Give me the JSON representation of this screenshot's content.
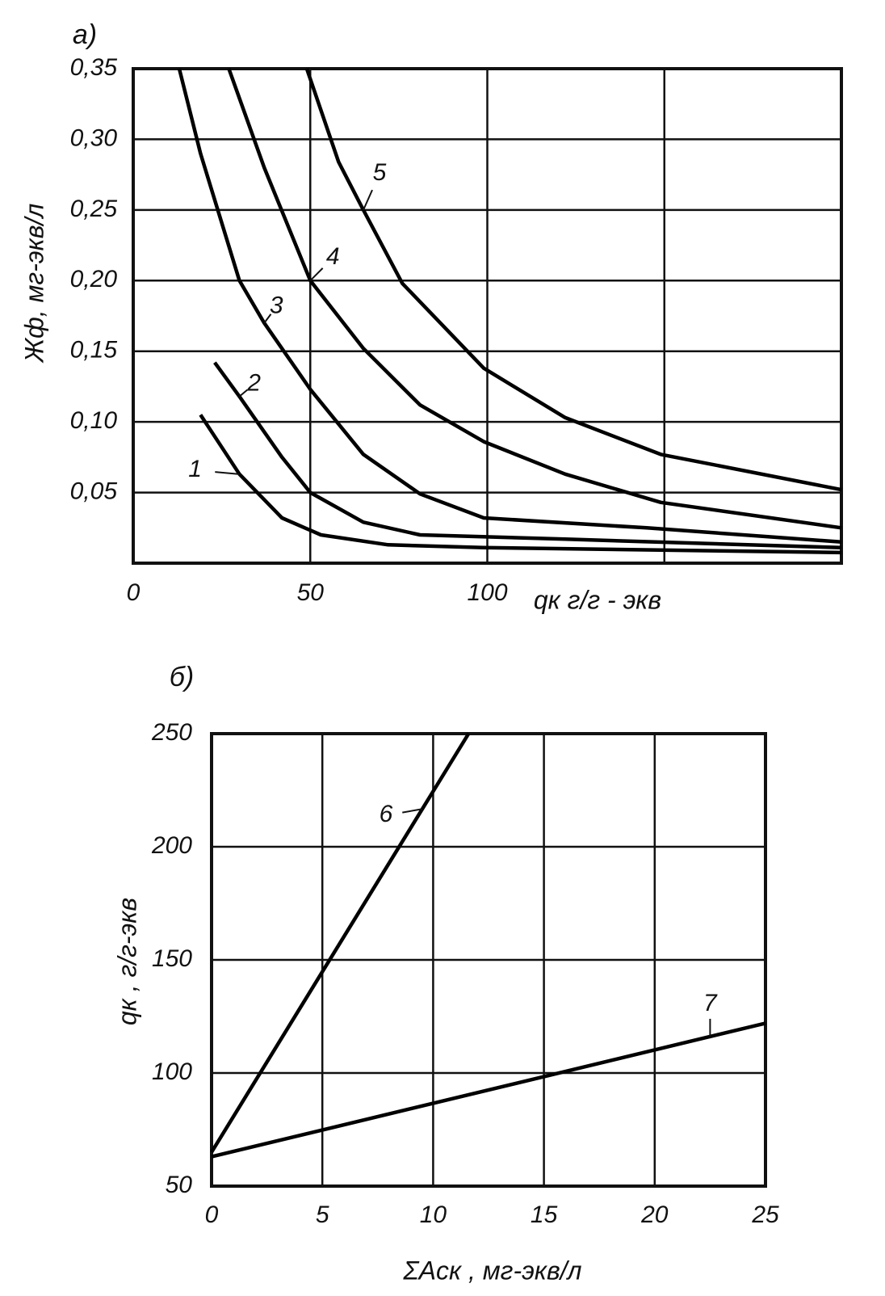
{
  "chart_data": [
    {
      "type": "line",
      "title": "а)",
      "xlabel": "qк г/г - экв",
      "ylabel": "Жф, мг-экв/л",
      "xlim": [
        0,
        200
      ],
      "ylim": [
        0,
        0.35
      ],
      "grid": true,
      "xticks": [
        0,
        50,
        100,
        {
          "value": 150,
          "label": null
        },
        {
          "value": 200,
          "label": null
        }
      ],
      "yticks": [
        {
          "value": 0.05,
          "label": "0,05"
        },
        {
          "value": 0.1,
          "label": "0,10"
        },
        {
          "value": 0.15,
          "label": "0,15"
        },
        {
          "value": 0.2,
          "label": "0,20"
        },
        {
          "value": 0.25,
          "label": "0,25"
        },
        {
          "value": 0.3,
          "label": "0,30"
        },
        {
          "value": 0.35,
          "label": "0,35"
        }
      ],
      "series": [
        {
          "name": "1",
          "color": "#000000",
          "x": [
            19,
            30,
            42,
            53,
            72,
            99,
            200
          ],
          "values": [
            0.105,
            0.063,
            0.032,
            0.02,
            0.013,
            0.011,
            0.0075
          ]
        },
        {
          "name": "2",
          "color": "#000000",
          "x": [
            23,
            30,
            42,
            50,
            65,
            81,
            122,
            200
          ],
          "values": [
            0.142,
            0.118,
            0.075,
            0.05,
            0.029,
            0.02,
            0.017,
            0.011
          ]
        },
        {
          "name": "3",
          "color": "#000000",
          "x": [
            13,
            19,
            30,
            37,
            50,
            65,
            81,
            99,
            145,
            200
          ],
          "values": [
            0.35,
            0.29,
            0.2,
            0.17,
            0.123,
            0.077,
            0.049,
            0.032,
            0.025,
            0.015
          ]
        },
        {
          "name": "4",
          "color": "#000000",
          "x": [
            27,
            37,
            50,
            65,
            81,
            99,
            122,
            149,
            200
          ],
          "values": [
            0.35,
            0.28,
            0.2,
            0.152,
            0.112,
            0.086,
            0.063,
            0.043,
            0.025
          ]
        },
        {
          "name": "5",
          "color": "#000000",
          "x": [
            49,
            58,
            65,
            76,
            99,
            122,
            149,
            200
          ],
          "values": [
            0.35,
            0.284,
            0.25,
            0.198,
            0.138,
            0.103,
            0.077,
            0.052
          ]
        }
      ]
    },
    {
      "type": "line",
      "title": "б)",
      "xlabel": "ΣAск , мг-экв/л",
      "ylabel": "qк , г/г-экв",
      "xlim": [
        0,
        25
      ],
      "ylim": [
        50,
        250
      ],
      "grid": true,
      "xticks": [
        0,
        5,
        10,
        15,
        20,
        25
      ],
      "yticks": [
        50,
        100,
        150,
        200,
        250
      ],
      "series": [
        {
          "name": "6",
          "color": "#000000",
          "x": [
            0,
            11.6
          ],
          "values": [
            65,
            250
          ]
        },
        {
          "name": "7",
          "color": "#000000",
          "x": [
            0,
            25
          ],
          "values": [
            63,
            122
          ]
        }
      ]
    }
  ]
}
